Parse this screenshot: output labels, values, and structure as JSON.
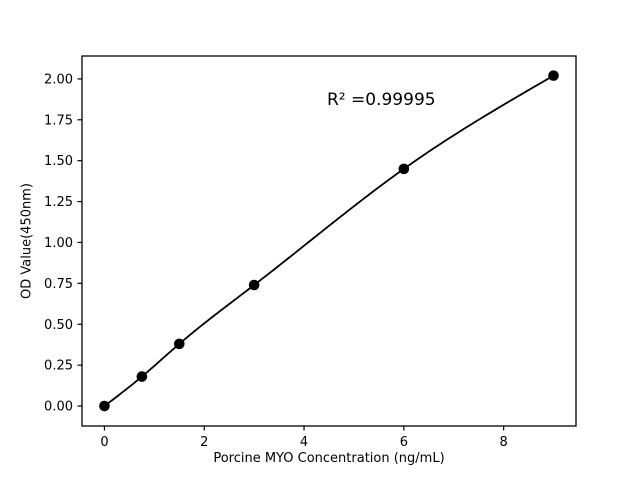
{
  "figure": {
    "background": "#ffffff",
    "foreground": "#000000"
  },
  "chart_data": {
    "type": "scatter",
    "subtype": "scatter-with-fitted-curve",
    "title": "",
    "xlabel": "Porcine MYO Concentration (ng/mL)",
    "ylabel": "OD Value(450nm)",
    "annotation": "R² =0.99995",
    "x": [
      0,
      0.75,
      1.5,
      3,
      6,
      9
    ],
    "y": [
      0.0,
      0.18,
      0.38,
      0.74,
      1.45,
      2.02
    ],
    "xticks": [
      0,
      2,
      4,
      6,
      8
    ],
    "xtick_labels": [
      "0",
      "2",
      "4",
      "6",
      "8"
    ],
    "yticks": [
      0.0,
      0.25,
      0.5,
      0.75,
      1.0,
      1.25,
      1.5,
      1.75,
      2.0
    ],
    "ytick_labels": [
      "0.00",
      "0.25",
      "0.50",
      "0.75",
      "1.00",
      "1.25",
      "1.50",
      "1.75",
      "2.00"
    ],
    "xlim": [
      -0.45,
      9.45
    ],
    "ylim": [
      -0.122,
      2.14
    ],
    "grid": false,
    "legend_position": "none",
    "line_color": "#000000",
    "marker_color": "#000000",
    "axis_color": "#000000"
  }
}
